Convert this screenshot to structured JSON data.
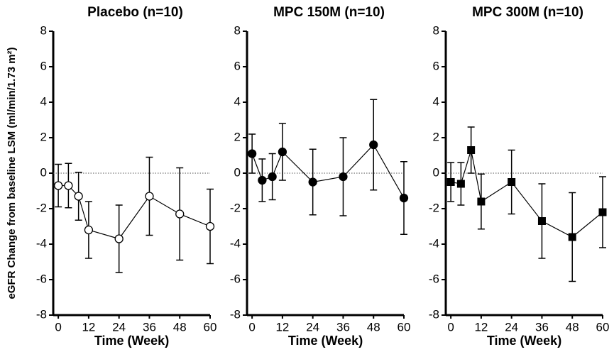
{
  "chart_data": [
    {
      "type": "line",
      "title": "Placebo (n=10)",
      "y_label": "eGFR Change from baseline LSM (ml/min/1.73 m²)",
      "x_label": "Time (Week)",
      "x": [
        0,
        4,
        8,
        12,
        24,
        36,
        48,
        60
      ],
      "values": [
        -0.7,
        -0.7,
        -1.3,
        -3.2,
        -3.7,
        -1.3,
        -2.3,
        -3.0
      ],
      "errors": [
        1.2,
        1.25,
        1.35,
        1.6,
        1.9,
        2.2,
        2.6,
        2.1
      ],
      "marker": "open-circle",
      "color": "#000000",
      "xlim": [
        -2,
        60
      ],
      "xticks": [
        0,
        12,
        24,
        36,
        48,
        60
      ],
      "ylim": [
        -8,
        8
      ],
      "yticks": [
        -8,
        -6,
        -4,
        -2,
        0,
        2,
        4,
        6,
        8
      ],
      "reference_line": 0
    },
    {
      "type": "line",
      "title": "MPC 150M (n=10)",
      "x_label": "Time (Week)",
      "x": [
        0,
        4,
        8,
        12,
        24,
        36,
        48,
        60
      ],
      "values": [
        1.1,
        -0.4,
        -0.2,
        1.2,
        -0.5,
        -0.2,
        1.6,
        -1.4
      ],
      "errors": [
        1.1,
        1.2,
        1.3,
        1.6,
        1.85,
        2.2,
        2.55,
        2.05
      ],
      "marker": "circle",
      "color": "#000000",
      "xlim": [
        -2,
        60
      ],
      "xticks": [
        0,
        12,
        24,
        36,
        48,
        60
      ],
      "ylim": [
        -8,
        8
      ],
      "yticks": [
        -8,
        -6,
        -4,
        -2,
        0,
        2,
        4,
        6,
        8
      ],
      "reference_line": 0
    },
    {
      "type": "line",
      "title": "MPC 300M (n=10)",
      "x_label": "Time (Week)",
      "x": [
        0,
        4,
        8,
        12,
        24,
        36,
        48,
        60
      ],
      "values": [
        -0.5,
        -0.6,
        1.3,
        -1.6,
        -0.5,
        -2.7,
        -3.6,
        -2.2
      ],
      "errors": [
        1.1,
        1.2,
        1.3,
        1.55,
        1.8,
        2.1,
        2.5,
        2.0
      ],
      "marker": "square",
      "color": "#000000",
      "xlim": [
        -2,
        60
      ],
      "xticks": [
        0,
        12,
        24,
        36,
        48,
        60
      ],
      "ylim": [
        -8,
        8
      ],
      "yticks": [
        -8,
        -6,
        -4,
        -2,
        0,
        2,
        4,
        6,
        8
      ],
      "reference_line": 0
    }
  ]
}
